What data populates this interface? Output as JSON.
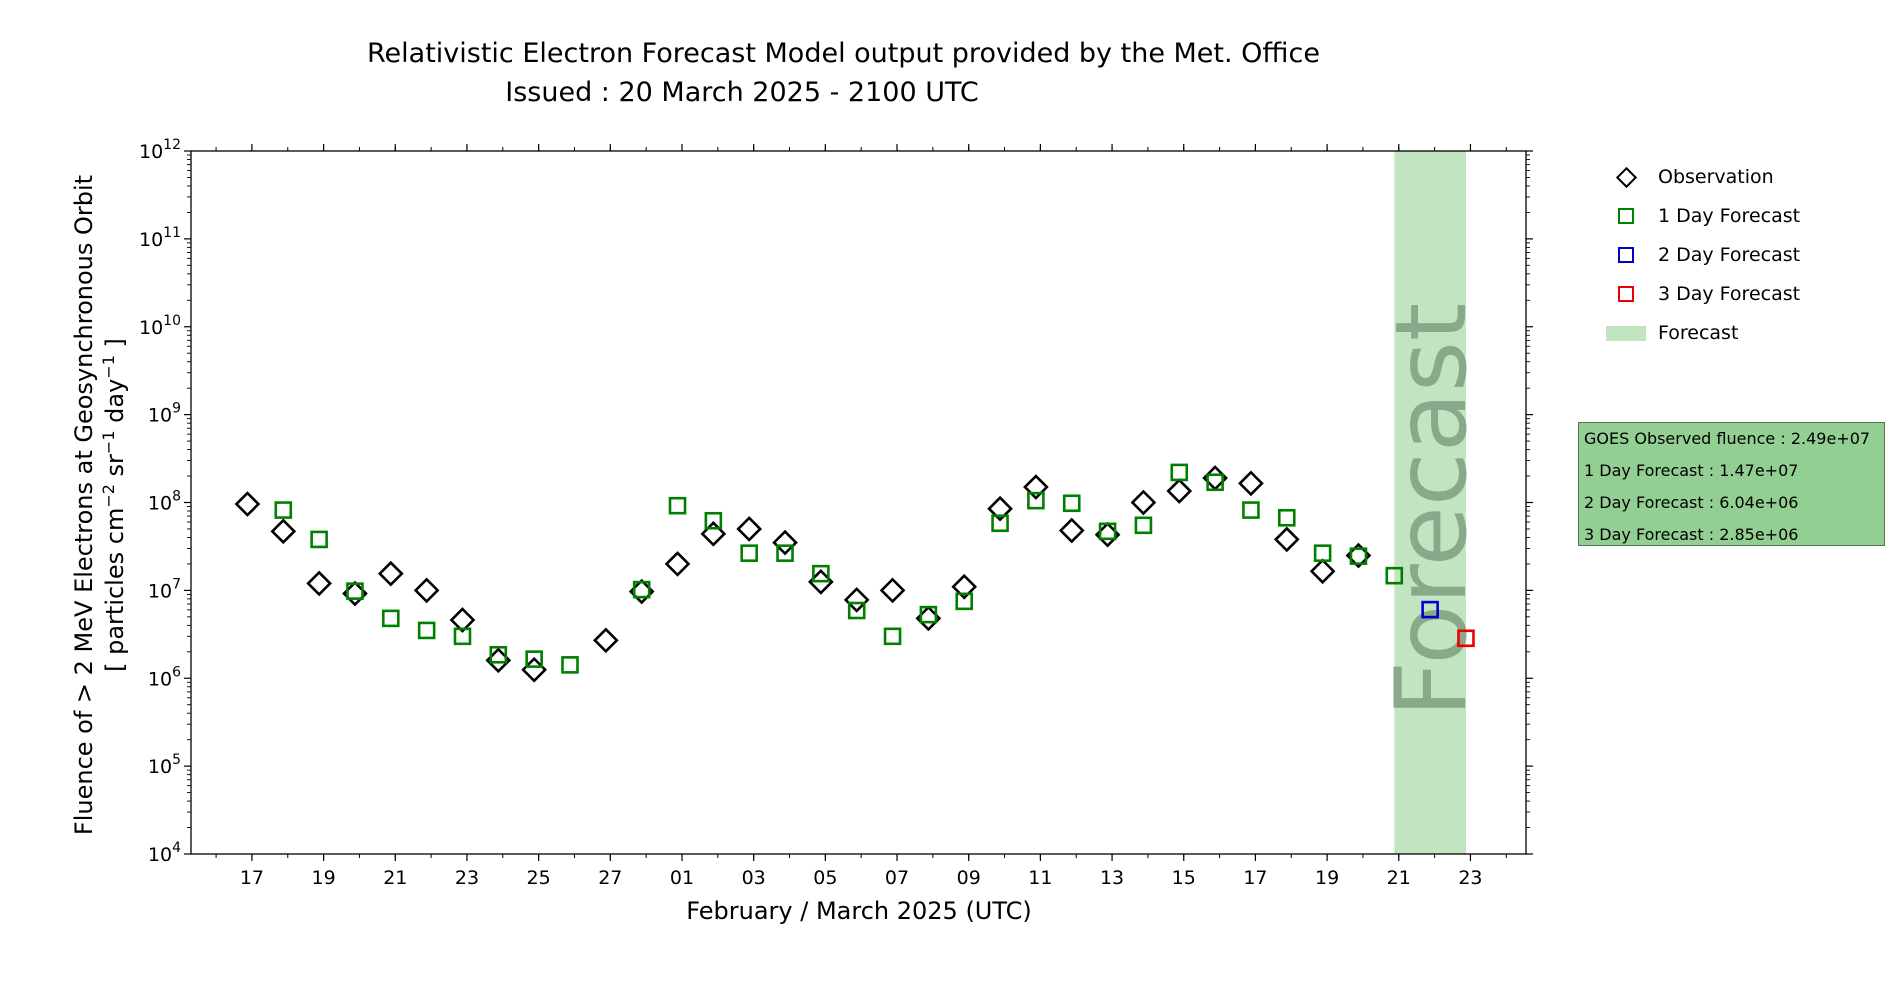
{
  "title": {
    "line1": "Relativistic Electron Forecast Model output provided by the Met. Office",
    "line2": "Issued : 20 March 2025 - 2100 UTC"
  },
  "legend": {
    "observation": "Observation",
    "forecast1": "1 Day Forecast",
    "forecast2": "2 Day Forecast",
    "forecast3": "3 Day Forecast",
    "forecast_region": "Forecast"
  },
  "infobox": {
    "observed": "GOES Observed fluence : 2.49e+07",
    "day1": "1 Day Forecast : 1.47e+07",
    "day2": "2 Day Forecast : 6.04e+06",
    "day3": "3 Day Forecast : 2.85e+06"
  },
  "colors": {
    "observation": "#000000",
    "forecast1": "#008000",
    "forecast2": "#0000cc",
    "forecast3": "#ee0000",
    "forecast_band": "#c1e5c1",
    "forecast_text": "#8aa88a",
    "infobox_bg": "#93cf93"
  },
  "chart_data": {
    "type": "scatter",
    "title": "Relativistic Electron Forecast Model output provided by the Met. Office",
    "subtitle": "Issued : 20 March 2025 - 2100 UTC",
    "xlabel": "February / March 2025 (UTC)",
    "ylabel": [
      "Fluence of > 2 MeV Electrons at Geosynchronous Orbit",
      "[ particles cm",
      "−2",
      " sr",
      "−1",
      " day",
      "−1",
      " ]"
    ],
    "y_scale": "log",
    "ylim": [
      10000,
      1000000000000
    ],
    "xlim": [
      "2025-02-15 07:12",
      "2025-03-24 13:12"
    ],
    "x_ticks": [
      {
        "date": "2025-02-17",
        "label": "17"
      },
      {
        "date": "2025-02-19",
        "label": "19"
      },
      {
        "date": "2025-02-21",
        "label": "21"
      },
      {
        "date": "2025-02-23",
        "label": "23"
      },
      {
        "date": "2025-02-25",
        "label": "25"
      },
      {
        "date": "2025-02-27",
        "label": "27"
      },
      {
        "date": "2025-03-01",
        "label": "01"
      },
      {
        "date": "2025-03-03",
        "label": "03"
      },
      {
        "date": "2025-03-05",
        "label": "05"
      },
      {
        "date": "2025-03-07",
        "label": "07"
      },
      {
        "date": "2025-03-09",
        "label": "09"
      },
      {
        "date": "2025-03-11",
        "label": "11"
      },
      {
        "date": "2025-03-13",
        "label": "13"
      },
      {
        "date": "2025-03-15",
        "label": "15"
      },
      {
        "date": "2025-03-17",
        "label": "17"
      },
      {
        "date": "2025-03-19",
        "label": "19"
      },
      {
        "date": "2025-03-21",
        "label": "21"
      },
      {
        "date": "2025-03-23",
        "label": "23"
      }
    ],
    "y_ticks": [
      {
        "value": 10000,
        "base": "10",
        "exp": "4"
      },
      {
        "value": 100000,
        "base": "10",
        "exp": "5"
      },
      {
        "value": 1000000,
        "base": "10",
        "exp": "6"
      },
      {
        "value": 10000000,
        "base": "10",
        "exp": "7"
      },
      {
        "value": 100000000,
        "base": "10",
        "exp": "8"
      },
      {
        "value": 1000000000,
        "base": "10",
        "exp": "9"
      },
      {
        "value": 10000000000,
        "base": "10",
        "exp": "10"
      },
      {
        "value": 100000000000,
        "base": "10",
        "exp": "11"
      },
      {
        "value": 1000000000000,
        "base": "10",
        "exp": "12"
      }
    ],
    "forecast_band": {
      "start": "2025-03-20 21:00",
      "end": "2025-03-22 21:00",
      "label": "Forecast"
    },
    "series": [
      {
        "name": "Observation",
        "marker": "diamond",
        "color": "#000000",
        "points": [
          {
            "x": "2025-02-16 21:00",
            "y": 96000000
          },
          {
            "x": "2025-02-17 21:00",
            "y": 47000000
          },
          {
            "x": "2025-02-18 21:00",
            "y": 12000000
          },
          {
            "x": "2025-02-19 21:00",
            "y": 9200000
          },
          {
            "x": "2025-02-20 21:00",
            "y": 15500000
          },
          {
            "x": "2025-02-21 21:00",
            "y": 10000000
          },
          {
            "x": "2025-02-22 21:00",
            "y": 4600000
          },
          {
            "x": "2025-02-23 21:00",
            "y": 1600000
          },
          {
            "x": "2025-02-24 21:00",
            "y": 1250000
          },
          {
            "x": "2025-02-26 21:00",
            "y": 2700000
          },
          {
            "x": "2025-02-27 21:00",
            "y": 9700000
          },
          {
            "x": "2025-02-28 21:00",
            "y": 20000000
          },
          {
            "x": "2025-03-01 21:00",
            "y": 44000000
          },
          {
            "x": "2025-03-02 21:00",
            "y": 50000000
          },
          {
            "x": "2025-03-03 21:00",
            "y": 35000000
          },
          {
            "x": "2025-03-04 21:00",
            "y": 12500000
          },
          {
            "x": "2025-03-05 21:00",
            "y": 7800000
          },
          {
            "x": "2025-03-06 21:00",
            "y": 10000000
          },
          {
            "x": "2025-03-07 21:00",
            "y": 4800000
          },
          {
            "x": "2025-03-08 21:00",
            "y": 11000000
          },
          {
            "x": "2025-03-09 21:00",
            "y": 85000000
          },
          {
            "x": "2025-03-10 21:00",
            "y": 150000000
          },
          {
            "x": "2025-03-11 21:00",
            "y": 48000000
          },
          {
            "x": "2025-03-12 21:00",
            "y": 43000000
          },
          {
            "x": "2025-03-13 21:00",
            "y": 100000000
          },
          {
            "x": "2025-03-14 21:00",
            "y": 135000000
          },
          {
            "x": "2025-03-15 21:00",
            "y": 190000000
          },
          {
            "x": "2025-03-16 21:00",
            "y": 165000000
          },
          {
            "x": "2025-03-17 21:00",
            "y": 38000000
          },
          {
            "x": "2025-03-18 21:00",
            "y": 16500000
          },
          {
            "x": "2025-03-19 21:00",
            "y": 24900000
          }
        ]
      },
      {
        "name": "1 Day Forecast",
        "marker": "square",
        "color": "#008000",
        "points": [
          {
            "x": "2025-02-17 21:00",
            "y": 82000000
          },
          {
            "x": "2025-02-18 21:00",
            "y": 38000000
          },
          {
            "x": "2025-02-19 21:00",
            "y": 9800000
          },
          {
            "x": "2025-02-20 21:00",
            "y": 4800000
          },
          {
            "x": "2025-02-21 21:00",
            "y": 3500000
          },
          {
            "x": "2025-02-22 21:00",
            "y": 3000000
          },
          {
            "x": "2025-02-23 21:00",
            "y": 1850000
          },
          {
            "x": "2025-02-24 21:00",
            "y": 1650000
          },
          {
            "x": "2025-02-25 21:00",
            "y": 1420000
          },
          {
            "x": "2025-02-27 21:00",
            "y": 10200000
          },
          {
            "x": "2025-02-28 21:00",
            "y": 92000000
          },
          {
            "x": "2025-03-01 21:00",
            "y": 62000000
          },
          {
            "x": "2025-03-02 21:00",
            "y": 26500000
          },
          {
            "x": "2025-03-03 21:00",
            "y": 26500000
          },
          {
            "x": "2025-03-04 21:00",
            "y": 15500000
          },
          {
            "x": "2025-03-05 21:00",
            "y": 5900000
          },
          {
            "x": "2025-03-06 21:00",
            "y": 3000000
          },
          {
            "x": "2025-03-07 21:00",
            "y": 5300000
          },
          {
            "x": "2025-03-08 21:00",
            "y": 7500000
          },
          {
            "x": "2025-03-09 21:00",
            "y": 58000000
          },
          {
            "x": "2025-03-10 21:00",
            "y": 105000000
          },
          {
            "x": "2025-03-11 21:00",
            "y": 98000000
          },
          {
            "x": "2025-03-12 21:00",
            "y": 47000000
          },
          {
            "x": "2025-03-13 21:00",
            "y": 55000000
          },
          {
            "x": "2025-03-14 21:00",
            "y": 220000000
          },
          {
            "x": "2025-03-15 21:00",
            "y": 170000000
          },
          {
            "x": "2025-03-16 21:00",
            "y": 82000000
          },
          {
            "x": "2025-03-17 21:00",
            "y": 67000000
          },
          {
            "x": "2025-03-18 21:00",
            "y": 26500000
          },
          {
            "x": "2025-03-19 21:00",
            "y": 24500000
          },
          {
            "x": "2025-03-20 21:00",
            "y": 14700000
          }
        ]
      },
      {
        "name": "2 Day Forecast",
        "marker": "square",
        "color": "#0000cc",
        "points": [
          {
            "x": "2025-03-21 21:00",
            "y": 6040000
          }
        ]
      },
      {
        "name": "3 Day Forecast",
        "marker": "square",
        "color": "#ee0000",
        "points": [
          {
            "x": "2025-03-22 21:00",
            "y": 2850000
          }
        ]
      }
    ]
  }
}
